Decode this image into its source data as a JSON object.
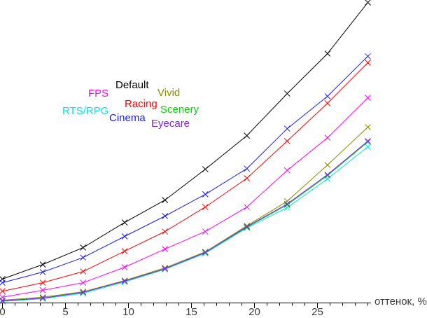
{
  "chart_data": {
    "type": "line",
    "title": "",
    "xlabel": "оттенок, %",
    "ylabel": "",
    "grid": false,
    "marker": "x",
    "legend_position": "inside-upper-left",
    "x_axis": {
      "min": 0,
      "max": 29,
      "tick_values": [
        0,
        5,
        10,
        15,
        20,
        25
      ],
      "tick_labels": [
        "0",
        "5",
        "10",
        "15",
        "20",
        "25"
      ],
      "minor_tick_step": 1
    },
    "y_axis": {
      "visible": false,
      "note": "no y-axis drawn; values are relative units 0-100 of plot height"
    },
    "x": [
      0,
      3.2,
      6.4,
      9.7,
      12.9,
      16.1,
      19.4,
      22.6,
      25.8,
      29
    ],
    "series": [
      {
        "name": "Default",
        "color": "#000000",
        "values": [
          7.9,
          12.7,
          18.3,
          26.6,
          34.0,
          44.2,
          55.3,
          69.2,
          82.4,
          99.3
        ]
      },
      {
        "name": "FPS",
        "color": "#ff00ff",
        "values": [
          1.9,
          4.2,
          6.7,
          11.8,
          17.8,
          23.6,
          31.7,
          43.8,
          54.6,
          67.8
        ]
      },
      {
        "name": "RTS/RPG",
        "color": "#00e5e5",
        "values": [
          0.5,
          1.4,
          3.2,
          6.9,
          11.1,
          16.4,
          24.8,
          31.5,
          41.0,
          51.6
        ]
      },
      {
        "name": "Cinema",
        "color": "#1a1aff",
        "values": [
          6.7,
          10.2,
          15.0,
          22.0,
          28.7,
          35.9,
          44.4,
          57.6,
          68.3,
          81.5
        ]
      },
      {
        "name": "Racing",
        "color": "#ff0000",
        "values": [
          3.9,
          6.7,
          10.4,
          17.1,
          23.6,
          31.7,
          41.2,
          53.5,
          66.0,
          79.4
        ]
      },
      {
        "name": "Vivid",
        "color": "#8b8b00",
        "values": [
          0.9,
          1.9,
          3.7,
          7.4,
          11.6,
          16.9,
          25.5,
          33.6,
          45.6,
          58.1
        ]
      },
      {
        "name": "Scenery",
        "color": "#00d400",
        "values": [
          0.7,
          1.6,
          3.5,
          7.2,
          11.3,
          16.7,
          25.0,
          32.4,
          42.1,
          53.2
        ]
      },
      {
        "name": "Eyecare",
        "color": "#8020f0",
        "values": [
          0.7,
          1.6,
          3.5,
          7.2,
          11.3,
          16.7,
          25.2,
          32.7,
          42.4,
          53.5
        ]
      }
    ]
  }
}
